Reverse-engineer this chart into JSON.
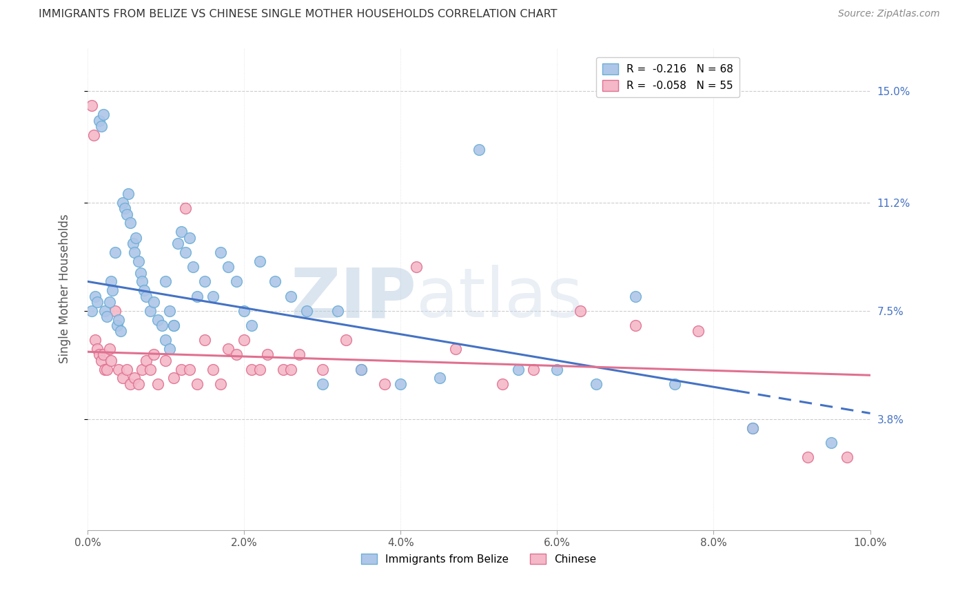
{
  "title": "IMMIGRANTS FROM BELIZE VS CHINESE SINGLE MOTHER HOUSEHOLDS CORRELATION CHART",
  "source": "Source: ZipAtlas.com",
  "ylabel": "Single Mother Households",
  "x_ticks": [
    0.0,
    2.0,
    4.0,
    6.0,
    8.0,
    10.0
  ],
  "y_ticks": [
    3.8,
    7.5,
    11.2,
    15.0
  ],
  "xlim": [
    0.0,
    10.0
  ],
  "ylim": [
    0.0,
    16.5
  ],
  "legend_blue_R": "-0.216",
  "legend_blue_N": "68",
  "legend_pink_R": "-0.058",
  "legend_pink_N": "55",
  "legend_blue_label": "Immigrants from Belize",
  "legend_pink_label": "Chinese",
  "blue_color": "#aec6e8",
  "blue_edge": "#6aaed6",
  "pink_color": "#f4b8c8",
  "pink_edge": "#e07090",
  "blue_trend_color": "#4472c4",
  "pink_trend_color": "#e07090",
  "blue_trend_start_y": 8.5,
  "blue_trend_end_y": 4.0,
  "blue_trend_solid_end_x": 8.3,
  "blue_trend_end_x": 10.0,
  "pink_trend_start_y": 6.1,
  "pink_trend_end_y": 5.3,
  "watermark_zip": "ZIP",
  "watermark_atlas": "atlas",
  "blue_scatter_x": [
    0.05,
    0.1,
    0.12,
    0.15,
    0.18,
    0.2,
    0.22,
    0.25,
    0.28,
    0.3,
    0.32,
    0.35,
    0.38,
    0.4,
    0.42,
    0.45,
    0.48,
    0.5,
    0.52,
    0.55,
    0.58,
    0.6,
    0.62,
    0.65,
    0.68,
    0.7,
    0.72,
    0.75,
    0.8,
    0.85,
    0.9,
    0.95,
    1.0,
    1.05,
    1.1,
    1.15,
    1.2,
    1.25,
    1.3,
    1.35,
    1.4,
    1.5,
    1.6,
    1.7,
    1.8,
    1.9,
    2.0,
    2.1,
    2.2,
    2.4,
    2.6,
    2.8,
    3.0,
    3.2,
    3.5,
    4.0,
    4.5,
    5.0,
    5.5,
    6.0,
    6.5,
    7.0,
    7.5,
    8.5,
    9.5,
    1.0,
    1.05,
    1.1
  ],
  "blue_scatter_y": [
    7.5,
    8.0,
    7.8,
    14.0,
    13.8,
    14.2,
    7.5,
    7.3,
    7.8,
    8.5,
    8.2,
    9.5,
    7.0,
    7.2,
    6.8,
    11.2,
    11.0,
    10.8,
    11.5,
    10.5,
    9.8,
    9.5,
    10.0,
    9.2,
    8.8,
    8.5,
    8.2,
    8.0,
    7.5,
    7.8,
    7.2,
    7.0,
    8.5,
    7.5,
    7.0,
    9.8,
    10.2,
    9.5,
    10.0,
    9.0,
    8.0,
    8.5,
    8.0,
    9.5,
    9.0,
    8.5,
    7.5,
    7.0,
    9.2,
    8.5,
    8.0,
    7.5,
    5.0,
    7.5,
    5.5,
    5.0,
    5.2,
    13.0,
    5.5,
    5.5,
    5.0,
    8.0,
    5.0,
    3.5,
    3.0,
    6.5,
    6.2,
    7.0
  ],
  "pink_scatter_x": [
    0.05,
    0.08,
    0.1,
    0.12,
    0.15,
    0.18,
    0.2,
    0.22,
    0.25,
    0.28,
    0.3,
    0.35,
    0.4,
    0.45,
    0.5,
    0.55,
    0.6,
    0.65,
    0.7,
    0.75,
    0.8,
    0.85,
    0.9,
    1.0,
    1.1,
    1.2,
    1.3,
    1.4,
    1.5,
    1.6,
    1.7,
    1.8,
    1.9,
    2.0,
    2.1,
    2.2,
    2.3,
    2.5,
    2.7,
    3.0,
    3.3,
    3.5,
    3.8,
    4.2,
    4.7,
    5.3,
    5.7,
    6.3,
    7.0,
    7.8,
    8.5,
    9.2,
    9.7,
    1.25,
    2.6
  ],
  "pink_scatter_y": [
    14.5,
    13.5,
    6.5,
    6.2,
    6.0,
    5.8,
    6.0,
    5.5,
    5.5,
    6.2,
    5.8,
    7.5,
    5.5,
    5.2,
    5.5,
    5.0,
    5.2,
    5.0,
    5.5,
    5.8,
    5.5,
    6.0,
    5.0,
    5.8,
    5.2,
    5.5,
    5.5,
    5.0,
    6.5,
    5.5,
    5.0,
    6.2,
    6.0,
    6.5,
    5.5,
    5.5,
    6.0,
    5.5,
    6.0,
    5.5,
    6.5,
    5.5,
    5.0,
    9.0,
    6.2,
    5.0,
    5.5,
    7.5,
    7.0,
    6.8,
    3.5,
    2.5,
    2.5,
    11.0,
    5.5
  ]
}
